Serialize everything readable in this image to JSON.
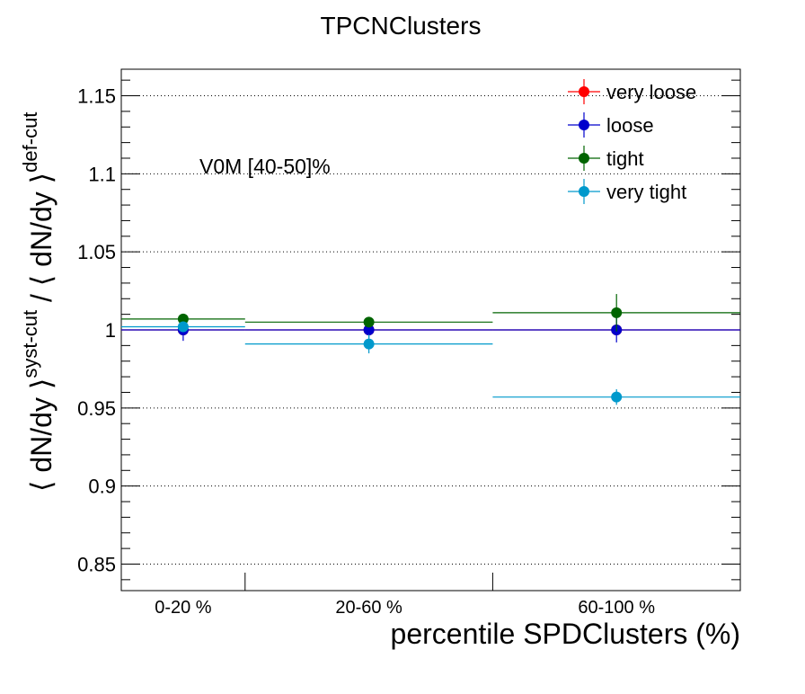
{
  "chart_data": {
    "type": "scatter",
    "title": "TPCNClusters",
    "xlabel": "percentile SPDClusters (%)",
    "ylabel": {
      "left": "⟨ dN/dy ⟩",
      "sup1": "syst-cut",
      "mid": " / ⟨ dN/dy ⟩",
      "sup2": "def-cut"
    },
    "annotation": "V0M [40-50]%",
    "categories": [
      "0-20 %",
      "20-60 %",
      "60-100 %"
    ],
    "bin_edges": [
      0,
      20,
      60,
      100
    ],
    "ylim": [
      0.833,
      1.167
    ],
    "yticks": [
      0.85,
      0.9,
      0.95,
      1,
      1.05,
      1.1,
      1.15
    ],
    "ytick_labels": [
      "0.85",
      "0.9",
      "0.95",
      "1",
      "1.05",
      "1.1",
      "1.15"
    ],
    "grid": "horizontal-dotted",
    "legend_position": "top-right",
    "series": [
      {
        "name": "very loose",
        "color": "#ff0000",
        "values": [
          1.0,
          1.0,
          1.0
        ],
        "errors": [
          0.0,
          0.0,
          0.0
        ]
      },
      {
        "name": "loose",
        "color": "#0000cc",
        "values": [
          1.0,
          1.0,
          1.0
        ],
        "errors": [
          0.007,
          0.005,
          0.008
        ]
      },
      {
        "name": "tight",
        "color": "#006400",
        "values": [
          1.007,
          1.005,
          1.011
        ],
        "errors": [
          0.003,
          0.002,
          0.012
        ]
      },
      {
        "name": "very tight",
        "color": "#0099cc",
        "values": [
          1.002,
          0.991,
          0.957
        ],
        "errors": [
          0.003,
          0.006,
          0.005
        ]
      }
    ]
  }
}
